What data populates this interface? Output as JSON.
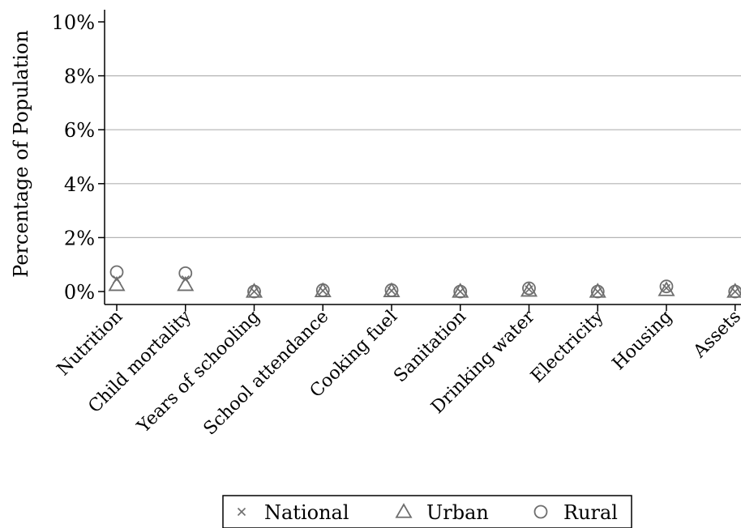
{
  "chart_data": {
    "type": "scatter",
    "categories": [
      "Nutrition",
      "Child mortality",
      "Years of schooling",
      "School attendance",
      "Cooking fuel",
      "Sanitation",
      "Drinking water",
      "Electricity",
      "Housing",
      "Assets"
    ],
    "series": [
      {
        "name": "National",
        "marker": "x",
        "values": [
          0.45,
          0.45,
          0.0,
          0.03,
          0.03,
          0.0,
          0.08,
          0.0,
          0.13,
          0.0
        ]
      },
      {
        "name": "Urban",
        "marker": "triangle",
        "values": [
          0.25,
          0.25,
          0.0,
          0.02,
          0.02,
          0.0,
          0.04,
          0.0,
          0.06,
          0.0
        ]
      },
      {
        "name": "Rural",
        "marker": "circle",
        "values": [
          0.72,
          0.68,
          0.0,
          0.05,
          0.05,
          0.0,
          0.12,
          0.0,
          0.19,
          0.0
        ]
      }
    ],
    "title": "",
    "xlabel": "",
    "ylabel": "Percentage of Population",
    "ylim": [
      0,
      10
    ],
    "yticks": [
      "0%",
      "2%",
      "4%",
      "6%",
      "8%",
      "10%"
    ],
    "grid": true,
    "legend_position": "bottom",
    "colors": {
      "marker": "#6e6e6e",
      "grid": "#b4b4b4",
      "axis": "#000000"
    }
  }
}
